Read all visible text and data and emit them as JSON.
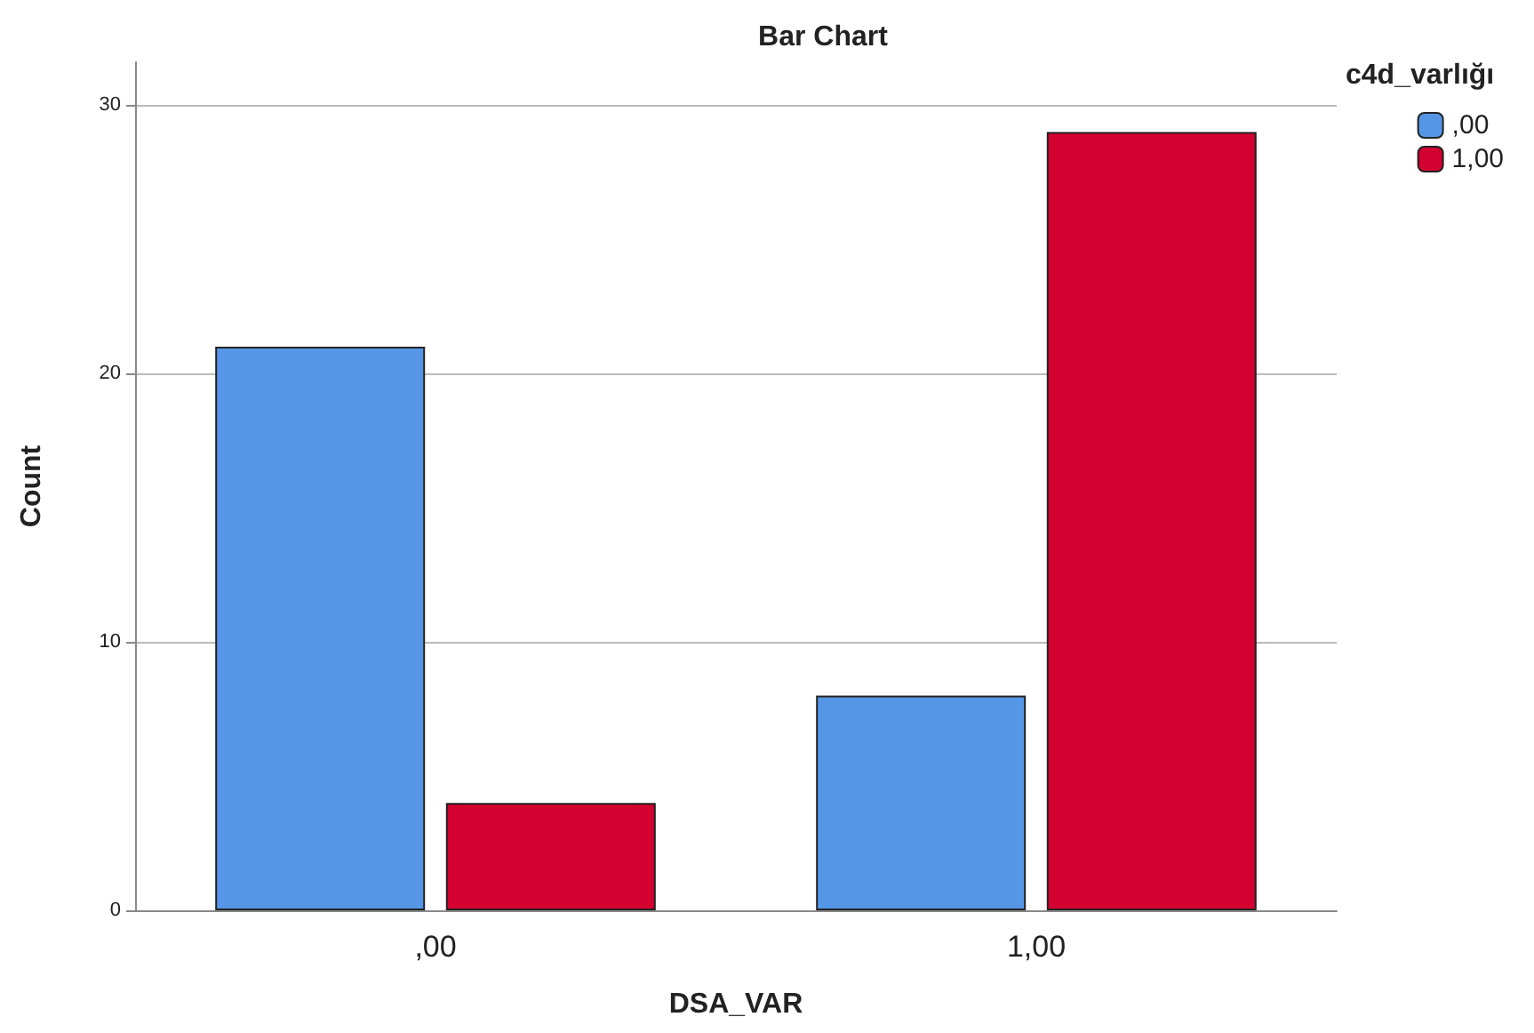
{
  "chart_data": {
    "type": "bar",
    "title": "Bar Chart",
    "xlabel": "DSA_VAR",
    "ylabel": "Count",
    "legend_title": "c4d_varlığı",
    "categories": [
      ",00",
      "1,00"
    ],
    "series": [
      {
        "name": ",00",
        "color": "#5596e6",
        "values": [
          21,
          8
        ]
      },
      {
        "name": "1,00",
        "color": "#d40030",
        "values": [
          4,
          29
        ]
      }
    ],
    "ylim": [
      0,
      31.6
    ],
    "yticks": [
      0,
      10,
      20,
      30
    ],
    "grid": "y",
    "legend": "top right"
  }
}
